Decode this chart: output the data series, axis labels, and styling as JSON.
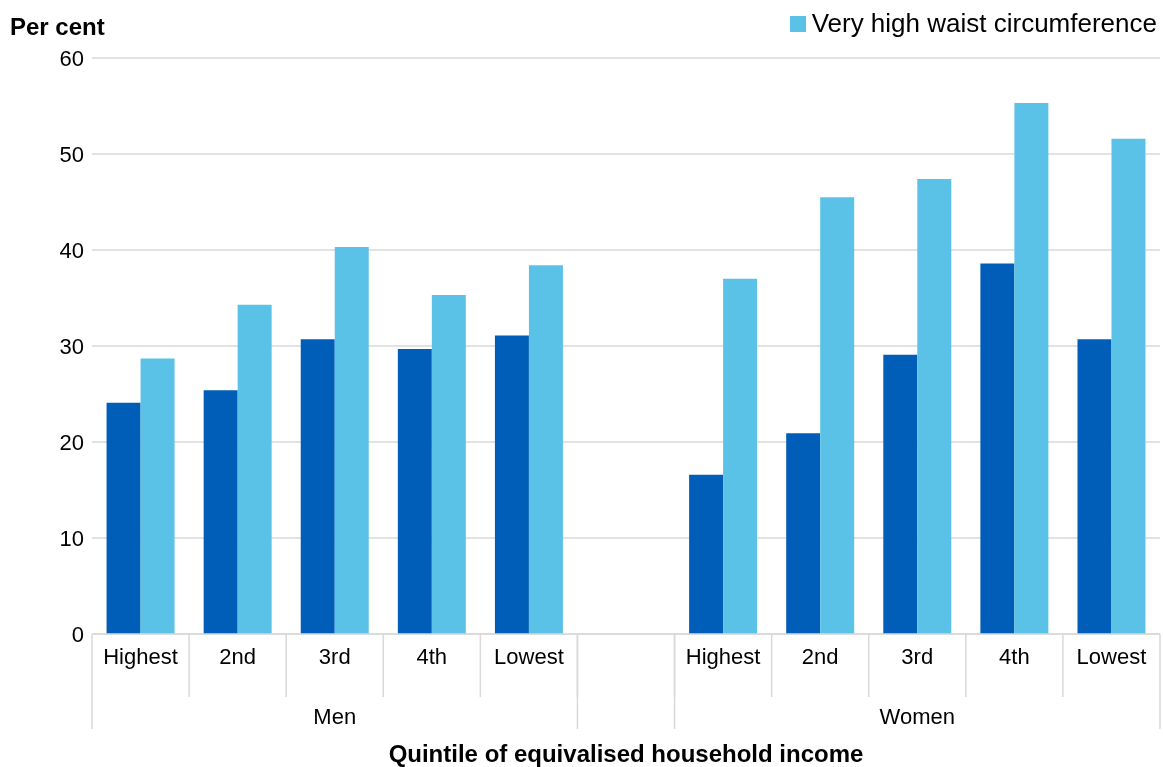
{
  "chart_data": {
    "type": "bar",
    "ylabel": "Per cent",
    "xlabel": "Quintile of equivalised household income",
    "categories": [
      "Highest",
      "2nd",
      "3rd",
      "4th",
      "Lowest",
      null,
      "Highest",
      "2nd",
      "3rd",
      "4th",
      "Lowest"
    ],
    "annotations": [
      "Men",
      "Women"
    ],
    "series": [
      {
        "color": "#005eb8",
        "values": [
          24.1,
          25.4,
          30.7,
          29.7,
          31.1,
          null,
          16.6,
          20.9,
          29.1,
          38.6,
          30.7
        ]
      },
      {
        "name": "Very high waist circumference",
        "color": "#5bc2e7",
        "values": [
          28.7,
          34.3,
          40.3,
          35.3,
          38.4,
          null,
          37.0,
          45.5,
          47.4,
          55.3,
          51.6
        ]
      }
    ],
    "ylim": [
      0,
      60
    ],
    "yticks": [
      0,
      10,
      20,
      30,
      40,
      50,
      60
    ],
    "grid": "y",
    "legend": "top right"
  }
}
